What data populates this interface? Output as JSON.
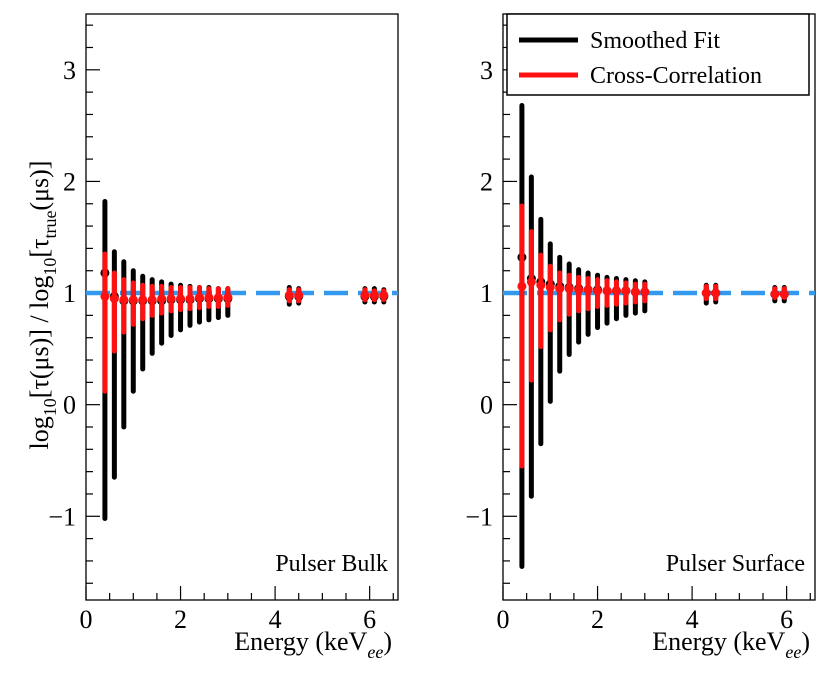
{
  "chart_data": [
    {
      "type": "scatter",
      "panel_label": "Pulser Bulk",
      "xlabel": "Energy (keV",
      "xlabel_sub": "ee",
      "xlabel_close": ")",
      "ylabel": {
        "part1": "log",
        "sub1": "10",
        "part2": "[τ(μs)] / log",
        "sub2": "10",
        "part3": "[τ",
        "sub3": "true",
        "part4": "(μs)]"
      },
      "xlim": [
        0,
        6.6
      ],
      "ylim": [
        -1.75,
        3.5
      ],
      "xticks": [
        0,
        2,
        4,
        6
      ],
      "xtick_labels": [
        "0",
        "2",
        "4",
        "6"
      ],
      "yticks": [
        -1,
        0,
        1,
        2,
        3
      ],
      "ytick_labels": [
        "−1",
        "0",
        "1",
        "2",
        "3"
      ],
      "reference_line": {
        "y": 1.0,
        "style": "dashed",
        "color": "#3399ee"
      },
      "series": [
        {
          "name": "Smoothed Fit",
          "color": "#000000",
          "points": [
            {
              "x": 0.4,
              "y": 1.18,
              "lo": -1.02,
              "hi": 1.82
            },
            {
              "x": 0.6,
              "y": 0.97,
              "lo": -0.65,
              "hi": 1.37
            },
            {
              "x": 0.8,
              "y": 0.93,
              "lo": -0.2,
              "hi": 1.28
            },
            {
              "x": 1.0,
              "y": 0.93,
              "lo": 0.12,
              "hi": 1.2
            },
            {
              "x": 1.2,
              "y": 0.93,
              "lo": 0.32,
              "hi": 1.15
            },
            {
              "x": 1.4,
              "y": 0.93,
              "lo": 0.46,
              "hi": 1.12
            },
            {
              "x": 1.6,
              "y": 0.93,
              "lo": 0.55,
              "hi": 1.1
            },
            {
              "x": 1.8,
              "y": 0.94,
              "lo": 0.62,
              "hi": 1.08
            },
            {
              "x": 2.0,
              "y": 0.94,
              "lo": 0.67,
              "hi": 1.07
            },
            {
              "x": 2.2,
              "y": 0.94,
              "lo": 0.71,
              "hi": 1.06
            },
            {
              "x": 2.4,
              "y": 0.95,
              "lo": 0.74,
              "hi": 1.05
            },
            {
              "x": 2.6,
              "y": 0.95,
              "lo": 0.76,
              "hi": 1.05
            },
            {
              "x": 2.8,
              "y": 0.95,
              "lo": 0.78,
              "hi": 1.04
            },
            {
              "x": 3.0,
              "y": 0.95,
              "lo": 0.8,
              "hi": 1.04
            },
            {
              "x": 4.3,
              "y": 0.97,
              "lo": 0.9,
              "hi": 1.05
            },
            {
              "x": 4.5,
              "y": 0.97,
              "lo": 0.91,
              "hi": 1.04
            },
            {
              "x": 5.9,
              "y": 0.97,
              "lo": 0.92,
              "hi": 1.04
            },
            {
              "x": 6.1,
              "y": 0.97,
              "lo": 0.92,
              "hi": 1.04
            },
            {
              "x": 6.3,
              "y": 0.97,
              "lo": 0.92,
              "hi": 1.03
            }
          ]
        },
        {
          "name": "Cross-Correlation",
          "color": "#ff1111",
          "points": [
            {
              "x": 0.4,
              "y": 0.97,
              "lo": 0.12,
              "hi": 1.35
            },
            {
              "x": 0.6,
              "y": 0.95,
              "lo": 0.48,
              "hi": 1.18
            },
            {
              "x": 0.8,
              "y": 0.94,
              "lo": 0.65,
              "hi": 1.12
            },
            {
              "x": 1.0,
              "y": 0.94,
              "lo": 0.72,
              "hi": 1.09
            },
            {
              "x": 1.2,
              "y": 0.94,
              "lo": 0.77,
              "hi": 1.07
            },
            {
              "x": 1.4,
              "y": 0.94,
              "lo": 0.8,
              "hi": 1.06
            },
            {
              "x": 1.6,
              "y": 0.95,
              "lo": 0.82,
              "hi": 1.06
            },
            {
              "x": 1.8,
              "y": 0.95,
              "lo": 0.84,
              "hi": 1.05
            },
            {
              "x": 2.0,
              "y": 0.95,
              "lo": 0.85,
              "hi": 1.05
            },
            {
              "x": 2.2,
              "y": 0.95,
              "lo": 0.86,
              "hi": 1.05
            },
            {
              "x": 2.4,
              "y": 0.96,
              "lo": 0.87,
              "hi": 1.05
            },
            {
              "x": 2.6,
              "y": 0.96,
              "lo": 0.88,
              "hi": 1.04
            },
            {
              "x": 2.8,
              "y": 0.96,
              "lo": 0.88,
              "hi": 1.04
            },
            {
              "x": 3.0,
              "y": 0.96,
              "lo": 0.89,
              "hi": 1.04
            },
            {
              "x": 4.3,
              "y": 0.98,
              "lo": 0.93,
              "hi": 1.03
            },
            {
              "x": 4.5,
              "y": 0.98,
              "lo": 0.93,
              "hi": 1.03
            },
            {
              "x": 5.9,
              "y": 0.98,
              "lo": 0.94,
              "hi": 1.03
            },
            {
              "x": 6.1,
              "y": 0.98,
              "lo": 0.94,
              "hi": 1.02
            },
            {
              "x": 6.3,
              "y": 0.98,
              "lo": 0.94,
              "hi": 1.02
            }
          ]
        }
      ]
    },
    {
      "type": "scatter",
      "panel_label": "Pulser Surface",
      "xlabel": "Energy (keV",
      "xlabel_sub": "ee",
      "xlabel_close": ")",
      "xlim": [
        0,
        6.6
      ],
      "ylim": [
        -1.75,
        3.5
      ],
      "xticks": [
        0,
        2,
        4,
        6
      ],
      "xtick_labels": [
        "0",
        "2",
        "4",
        "6"
      ],
      "yticks": [
        -1,
        0,
        1,
        2,
        3
      ],
      "ytick_labels": [
        "−1",
        "0",
        "1",
        "2",
        "3"
      ],
      "reference_line": {
        "y": 1.0,
        "style": "dashed",
        "color": "#3399ee"
      },
      "legend": {
        "position": "top-right",
        "entries": [
          "Smoothed Fit",
          "Cross-Correlation"
        ]
      },
      "series": [
        {
          "name": "Smoothed Fit",
          "color": "#000000",
          "points": [
            {
              "x": 0.4,
              "y": 1.32,
              "lo": -1.45,
              "hi": 2.68
            },
            {
              "x": 0.6,
              "y": 1.13,
              "lo": -0.82,
              "hi": 2.04
            },
            {
              "x": 0.8,
              "y": 1.1,
              "lo": -0.35,
              "hi": 1.66
            },
            {
              "x": 1.0,
              "y": 1.08,
              "lo": 0.03,
              "hi": 1.44
            },
            {
              "x": 1.2,
              "y": 1.06,
              "lo": 0.3,
              "hi": 1.32
            },
            {
              "x": 1.4,
              "y": 1.05,
              "lo": 0.45,
              "hi": 1.26
            },
            {
              "x": 1.6,
              "y": 1.04,
              "lo": 0.56,
              "hi": 1.21
            },
            {
              "x": 1.8,
              "y": 1.03,
              "lo": 0.63,
              "hi": 1.18
            },
            {
              "x": 2.0,
              "y": 1.03,
              "lo": 0.69,
              "hi": 1.16
            },
            {
              "x": 2.2,
              "y": 1.02,
              "lo": 0.73,
              "hi": 1.14
            },
            {
              "x": 2.4,
              "y": 1.02,
              "lo": 0.77,
              "hi": 1.13
            },
            {
              "x": 2.6,
              "y": 1.02,
              "lo": 0.8,
              "hi": 1.12
            },
            {
              "x": 2.8,
              "y": 1.01,
              "lo": 0.82,
              "hi": 1.11
            },
            {
              "x": 3.0,
              "y": 1.01,
              "lo": 0.84,
              "hi": 1.1
            },
            {
              "x": 4.3,
              "y": 1.0,
              "lo": 0.91,
              "hi": 1.07
            },
            {
              "x": 4.5,
              "y": 1.0,
              "lo": 0.92,
              "hi": 1.07
            },
            {
              "x": 5.75,
              "y": 0.99,
              "lo": 0.93,
              "hi": 1.05
            },
            {
              "x": 5.95,
              "y": 0.99,
              "lo": 0.93,
              "hi": 1.05
            }
          ]
        },
        {
          "name": "Cross-Correlation",
          "color": "#ff1111",
          "points": [
            {
              "x": 0.4,
              "y": 1.06,
              "lo": -0.55,
              "hi": 1.78
            },
            {
              "x": 0.6,
              "y": 1.1,
              "lo": 0.22,
              "hi": 1.55
            },
            {
              "x": 0.8,
              "y": 1.07,
              "lo": 0.52,
              "hi": 1.34
            },
            {
              "x": 1.0,
              "y": 1.05,
              "lo": 0.67,
              "hi": 1.24
            },
            {
              "x": 1.2,
              "y": 1.04,
              "lo": 0.76,
              "hi": 1.18
            },
            {
              "x": 1.4,
              "y": 1.04,
              "lo": 0.81,
              "hi": 1.16
            },
            {
              "x": 1.6,
              "y": 1.03,
              "lo": 0.84,
              "hi": 1.14
            },
            {
              "x": 1.8,
              "y": 1.03,
              "lo": 0.86,
              "hi": 1.13
            },
            {
              "x": 2.0,
              "y": 1.02,
              "lo": 0.88,
              "hi": 1.12
            },
            {
              "x": 2.2,
              "y": 1.02,
              "lo": 0.89,
              "hi": 1.11
            },
            {
              "x": 2.4,
              "y": 1.02,
              "lo": 0.9,
              "hi": 1.1
            },
            {
              "x": 2.6,
              "y": 1.02,
              "lo": 0.91,
              "hi": 1.09
            },
            {
              "x": 2.8,
              "y": 1.01,
              "lo": 0.92,
              "hi": 1.08
            },
            {
              "x": 3.0,
              "y": 1.01,
              "lo": 0.93,
              "hi": 1.08
            },
            {
              "x": 4.3,
              "y": 1.0,
              "lo": 0.95,
              "hi": 1.06
            },
            {
              "x": 4.5,
              "y": 1.0,
              "lo": 0.95,
              "hi": 1.06
            },
            {
              "x": 5.75,
              "y": 0.99,
              "lo": 0.96,
              "hi": 1.04
            },
            {
              "x": 5.95,
              "y": 0.99,
              "lo": 0.96,
              "hi": 1.04
            }
          ]
        }
      ]
    }
  ]
}
